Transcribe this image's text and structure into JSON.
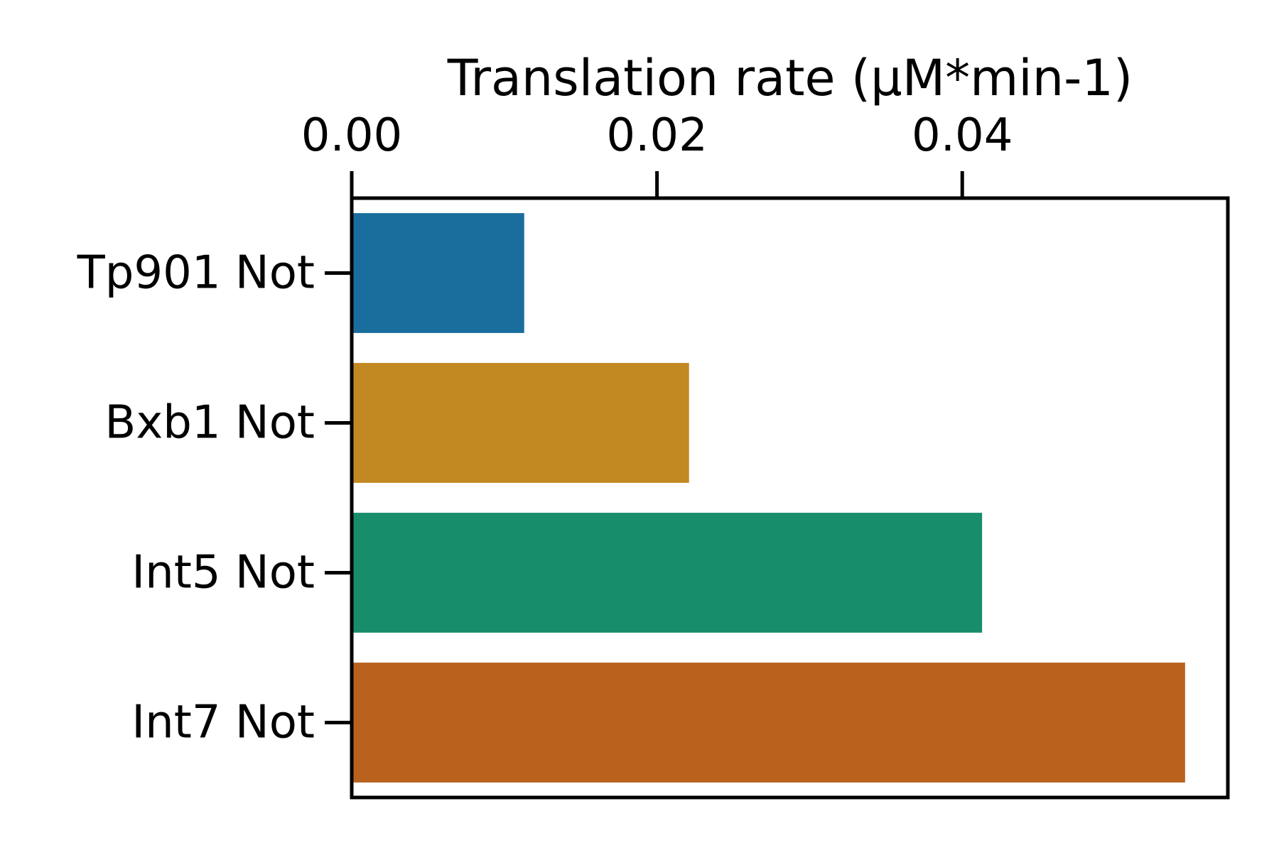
{
  "chart_data": {
    "type": "bar",
    "orientation": "horizontal",
    "title": "",
    "xlabel": "Translation rate (µM*min-1)",
    "xlabel_position": "top",
    "ylabel": "",
    "categories": [
      "Tp901 Not",
      "Bxb1 Not",
      "Int5 Not",
      "Int7 Not"
    ],
    "values": [
      0.0113,
      0.0221,
      0.0413,
      0.0546
    ],
    "colors": [
      "#1a6e9e",
      "#c28821",
      "#178d6c",
      "#b8621e"
    ],
    "xlim": [
      0,
      0.0574
    ],
    "xticks": [
      0.0,
      0.02,
      0.04
    ],
    "xtick_labels": [
      "0.00",
      "0.02",
      "0.04"
    ],
    "grid": false,
    "legend": "none"
  }
}
